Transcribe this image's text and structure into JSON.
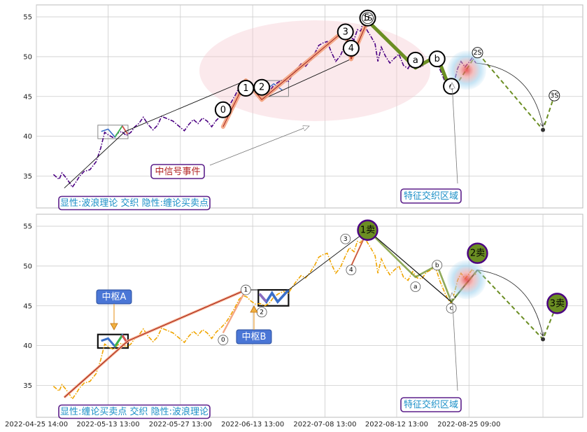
{
  "chart_data": [
    {
      "type": "line",
      "panel": "top",
      "ylim": [
        31,
        56.5
      ],
      "yticks": [
        35,
        40,
        45,
        50,
        55
      ],
      "grid": true,
      "price_series": {
        "style": "dash-dot",
        "color": "#4b0082",
        "points": [
          [
            0,
            35.2
          ],
          [
            1,
            34.6
          ],
          [
            1.5,
            35.4
          ],
          [
            2.2,
            34.8
          ],
          [
            2.8,
            34.2
          ],
          [
            3.3,
            33.6
          ],
          [
            4,
            34.3
          ],
          [
            4.6,
            35
          ],
          [
            5.4,
            35.6
          ],
          [
            6.4,
            35.8
          ],
          [
            7.5,
            36.8
          ],
          [
            8.3,
            38.5
          ],
          [
            9,
            40.5
          ],
          [
            9.8,
            40.1
          ],
          [
            10.6,
            39.8
          ],
          [
            11.3,
            40.4
          ],
          [
            12,
            40.6
          ],
          [
            12.8,
            40.1
          ],
          [
            13.6,
            40.5
          ],
          [
            14.3,
            41.2
          ],
          [
            15,
            41.6
          ],
          [
            15.8,
            42.4
          ],
          [
            16.6,
            41.5
          ],
          [
            17.5,
            40.8
          ],
          [
            18.3,
            41.4
          ],
          [
            19,
            42.5
          ],
          [
            20,
            42.2
          ],
          [
            21,
            41.9
          ],
          [
            22,
            41.3
          ],
          [
            23,
            40.7
          ],
          [
            23.8,
            41.5
          ],
          [
            24.6,
            42.1
          ],
          [
            25.4,
            41.6
          ],
          [
            26.2,
            42.3
          ],
          [
            27,
            41.9
          ],
          [
            27.8,
            41.2
          ],
          [
            28.6,
            42
          ],
          [
            29.5,
            42.6
          ],
          [
            30.3,
            43.2
          ],
          [
            31.1,
            44.1
          ],
          [
            31.9,
            45.1
          ],
          [
            32.6,
            46.1
          ],
          [
            33.3,
            46.6
          ],
          [
            34,
            46.4
          ],
          [
            34.7,
            45.9
          ],
          [
            35.5,
            45.5
          ],
          [
            36.3,
            45.6
          ],
          [
            37.1,
            45.3
          ],
          [
            37.9,
            45.6
          ],
          [
            38.7,
            46.4
          ],
          [
            39.5,
            46.8
          ],
          [
            40.4,
            47.1
          ],
          [
            41.2,
            46.8
          ],
          [
            41.9,
            47.6
          ],
          [
            42.7,
            48.4
          ],
          [
            43.5,
            49.1
          ],
          [
            44.3,
            48.8
          ],
          [
            45.1,
            49.5
          ],
          [
            45.9,
            50.4
          ],
          [
            46.6,
            51.4
          ],
          [
            47.3,
            51.7
          ],
          [
            48.1,
            51.9
          ],
          [
            48.8,
            50.6
          ],
          [
            49.6,
            49.4
          ],
          [
            50.4,
            50.1
          ],
          [
            51.2,
            51.4
          ],
          [
            52,
            52.6
          ],
          [
            52.8,
            52.1
          ],
          [
            53.4,
            53.4
          ],
          [
            54,
            53.2
          ],
          [
            54.5,
            54.7
          ],
          [
            55.1,
            53.3
          ],
          [
            55.8,
            52.5
          ],
          [
            56.5,
            51.6
          ],
          [
            57,
            49.4
          ],
          [
            57.6,
            51.2
          ],
          [
            58.3,
            50.1
          ],
          [
            59.1,
            49.2
          ],
          [
            59.9,
            49.8
          ],
          [
            60.7,
            50.3
          ],
          [
            61.5,
            48.9
          ],
          [
            62.3,
            48.5
          ],
          [
            63.1,
            49.6
          ],
          [
            63.9,
            48.8
          ],
          [
            64.7,
            48.7
          ],
          [
            65.5,
            49.5
          ],
          [
            66.3,
            49.8
          ],
          [
            67.1,
            50.2
          ],
          [
            67.9,
            48.4
          ],
          [
            68.6,
            47.2
          ],
          [
            69.3,
            46.1
          ],
          [
            69.9,
            45.6
          ],
          [
            70.4,
            46.8
          ],
          [
            71,
            48.5
          ],
          [
            71.6,
            49.4
          ],
          [
            72.3,
            48.7
          ],
          [
            73,
            49.3
          ],
          [
            73.6,
            49.9
          ],
          [
            74.2,
            49.2
          ]
        ]
      },
      "waves": [
        {
          "label": "0",
          "x": 29.8,
          "y": 41.2
        },
        {
          "label": "1",
          "x": 33.8,
          "y": 47
        },
        {
          "label": "2",
          "x": 36.6,
          "y": 44.6
        },
        {
          "label": "3",
          "x": 51.3,
          "y": 53.4
        },
        {
          "label": "4",
          "x": 52.3,
          "y": 49.7
        },
        {
          "label": "1S",
          "x": 55.2,
          "y": 54.5
        },
        {
          "label": "5",
          "x": 55.2,
          "y": 54.5
        },
        {
          "label": "a",
          "x": 63.6,
          "y": 48.6
        },
        {
          "label": "b",
          "x": 67.4,
          "y": 50.1
        },
        {
          "label": "c",
          "x": 69.9,
          "y": 45.5
        },
        {
          "label": "2S",
          "x": 74.5,
          "y": 50.5
        },
        {
          "label": "3S",
          "x": 88,
          "y": 45.1
        }
      ],
      "annotations": [
        {
          "text": "中信号事件",
          "color": "#b22222"
        },
        {
          "text": "特征交织区域",
          "color": "#1a8fc7"
        },
        {
          "text": "显性:波浪理论 交织 隐性:缠论买卖点",
          "color": "#1a8fc7"
        }
      ]
    },
    {
      "type": "line",
      "panel": "bottom",
      "ylim": [
        31,
        56.5
      ],
      "yticks": [
        35,
        40,
        45,
        50,
        55
      ],
      "grid": true,
      "price_series": {
        "style": "dash-dot",
        "color": "#f0a500"
      },
      "zhongshu": [
        {
          "label": "中枢A",
          "x0": 7.8,
          "x1": 13.1,
          "y0": 39.7,
          "y1": 41.4
        },
        {
          "label": "中枢B",
          "x0": 36,
          "x1": 41.3,
          "y0": 45,
          "y1": 47
        }
      ],
      "signals": [
        {
          "label": "1卖",
          "x": 55.2,
          "y": 54.5
        },
        {
          "label": "2卖",
          "x": 74.5,
          "y": 51.6
        },
        {
          "label": "3卖",
          "x": 88.5,
          "y": 45.3
        }
      ],
      "small_labels": [
        {
          "label": "0",
          "x": 29.8,
          "y": 40.7
        },
        {
          "label": "1",
          "x": 33.8,
          "y": 47
        },
        {
          "label": "2",
          "x": 36.6,
          "y": 44.2
        },
        {
          "label": "3",
          "x": 51.3,
          "y": 53.4
        },
        {
          "label": "4",
          "x": 52.3,
          "y": 49.5
        },
        {
          "label": "a",
          "x": 63.6,
          "y": 47.4
        },
        {
          "label": "b",
          "x": 67.4,
          "y": 50.1
        },
        {
          "label": "c",
          "x": 69.9,
          "y": 44.7
        }
      ],
      "annotations": [
        {
          "text": "特征交织区域",
          "color": "#1a8fc7"
        },
        {
          "text": "显性:缠论买卖点 交织 隐性:波浪理论",
          "color": "#1a8fc7"
        }
      ]
    }
  ],
  "x_axis": {
    "xlim": [
      -3,
      93
    ],
    "ticks": [
      {
        "label": "2022-04-25 14:00",
        "x": -3
      },
      {
        "label": "2022-05-13 13:00",
        "x": 9.6
      },
      {
        "label": "2022-05-27 13:00",
        "x": 22.3
      },
      {
        "label": "2022-06-13 13:00",
        "x": 35
      },
      {
        "label": "2022-07-08 13:00",
        "x": 47.7
      },
      {
        "label": "2022-08-12 13:00",
        "x": 60.3
      },
      {
        "label": "2022-08-25 09:00",
        "x": 73
      }
    ]
  },
  "colors": {
    "grid": "#cccccc",
    "olive": "#6b8e23",
    "salmon": "#f4a582",
    "purple": "#4b0082",
    "label_box_border": "#5b1f8a",
    "zhongshu_fill": "#3a6fc9"
  }
}
